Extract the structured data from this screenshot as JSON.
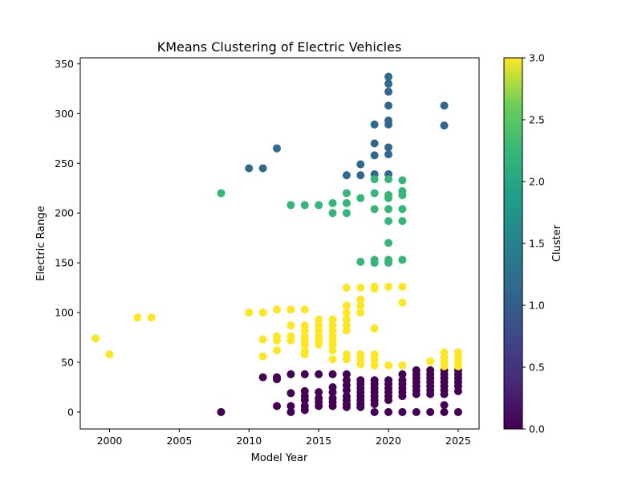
{
  "chart_data": {
    "type": "scatter",
    "title": "KMeans Clustering of Electric Vehicles",
    "xlabel": "Model Year",
    "ylabel": "Electric Range",
    "xlim": [
      1997.9,
      2026.5
    ],
    "ylim": [
      -17,
      356
    ],
    "x_ticks": [
      2000,
      2005,
      2010,
      2015,
      2020,
      2025
    ],
    "y_ticks": [
      0,
      50,
      100,
      150,
      200,
      250,
      300,
      350
    ],
    "grid": false,
    "colorbar": {
      "label": "Cluster",
      "range": [
        0,
        3
      ],
      "ticks": [
        0.0,
        0.5,
        1.0,
        1.5,
        2.0,
        2.5,
        3.0
      ],
      "tick_labels": [
        "0.0",
        "0.5",
        "1.0",
        "1.5",
        "2.0",
        "2.5",
        "3.0"
      ],
      "colormap": "viridis"
    },
    "clusters": [
      {
        "cluster": 0,
        "color": "#440154",
        "points": [
          [
            2008,
            0
          ],
          [
            2011,
            35
          ],
          [
            2012,
            35
          ],
          [
            2012,
            33
          ],
          [
            2012,
            6
          ],
          [
            2013,
            38
          ],
          [
            2013,
            19
          ],
          [
            2013,
            6
          ],
          [
            2013,
            0
          ],
          [
            2014,
            38
          ],
          [
            2014,
            21
          ],
          [
            2014,
            16
          ],
          [
            2014,
            12
          ],
          [
            2014,
            6
          ],
          [
            2014,
            2
          ],
          [
            2015,
            38
          ],
          [
            2015,
            20
          ],
          [
            2015,
            14
          ],
          [
            2015,
            10
          ],
          [
            2015,
            6
          ],
          [
            2016,
            38
          ],
          [
            2016,
            25
          ],
          [
            2016,
            20
          ],
          [
            2016,
            14
          ],
          [
            2016,
            10
          ],
          [
            2016,
            6
          ],
          [
            2017,
            38
          ],
          [
            2017,
            32
          ],
          [
            2017,
            27
          ],
          [
            2017,
            22
          ],
          [
            2017,
            16
          ],
          [
            2017,
            12
          ],
          [
            2017,
            8
          ],
          [
            2017,
            5
          ],
          [
            2018,
            32
          ],
          [
            2018,
            28
          ],
          [
            2018,
            24
          ],
          [
            2018,
            20
          ],
          [
            2018,
            16
          ],
          [
            2018,
            12
          ],
          [
            2018,
            8
          ],
          [
            2018,
            5
          ],
          [
            2019,
            32
          ],
          [
            2019,
            28
          ],
          [
            2019,
            24
          ],
          [
            2019,
            20
          ],
          [
            2019,
            16
          ],
          [
            2019,
            12
          ],
          [
            2019,
            8
          ],
          [
            2019,
            0
          ],
          [
            2020,
            32
          ],
          [
            2020,
            28
          ],
          [
            2020,
            24
          ],
          [
            2020,
            20
          ],
          [
            2020,
            16
          ],
          [
            2020,
            12
          ],
          [
            2020,
            0
          ],
          [
            2021,
            38
          ],
          [
            2021,
            32
          ],
          [
            2021,
            28
          ],
          [
            2021,
            24
          ],
          [
            2021,
            20
          ],
          [
            2021,
            16
          ],
          [
            2021,
            0
          ],
          [
            2022,
            42
          ],
          [
            2022,
            38
          ],
          [
            2022,
            34
          ],
          [
            2022,
            30
          ],
          [
            2022,
            26
          ],
          [
            2022,
            22
          ],
          [
            2022,
            18
          ],
          [
            2022,
            0
          ],
          [
            2023,
            42
          ],
          [
            2023,
            38
          ],
          [
            2023,
            34
          ],
          [
            2023,
            30
          ],
          [
            2023,
            26
          ],
          [
            2023,
            22
          ],
          [
            2023,
            18
          ],
          [
            2023,
            0
          ],
          [
            2024,
            42
          ],
          [
            2024,
            38
          ],
          [
            2024,
            34
          ],
          [
            2024,
            30
          ],
          [
            2024,
            26
          ],
          [
            2024,
            22
          ],
          [
            2024,
            18
          ],
          [
            2024,
            7
          ],
          [
            2024,
            0
          ],
          [
            2025,
            42
          ],
          [
            2025,
            38
          ],
          [
            2025,
            34
          ],
          [
            2025,
            30
          ],
          [
            2025,
            26
          ],
          [
            2025,
            21
          ],
          [
            2025,
            0
          ]
        ]
      },
      {
        "cluster": 1,
        "color": "#31688e",
        "points": [
          [
            2010,
            245
          ],
          [
            2011,
            245
          ],
          [
            2012,
            265
          ],
          [
            2017,
            238
          ],
          [
            2018,
            249
          ],
          [
            2018,
            238
          ],
          [
            2019,
            289
          ],
          [
            2019,
            270
          ],
          [
            2019,
            258
          ],
          [
            2019,
            239
          ],
          [
            2020,
            337
          ],
          [
            2020,
            330
          ],
          [
            2020,
            322
          ],
          [
            2020,
            308
          ],
          [
            2020,
            293
          ],
          [
            2020,
            289
          ],
          [
            2020,
            266
          ],
          [
            2020,
            259
          ],
          [
            2020,
            239
          ],
          [
            2024,
            308
          ],
          [
            2024,
            288
          ]
        ]
      },
      {
        "cluster": 2,
        "color": "#35b779",
        "points": [
          [
            2008,
            220
          ],
          [
            2013,
            208
          ],
          [
            2014,
            208
          ],
          [
            2015,
            208
          ],
          [
            2016,
            210
          ],
          [
            2016,
            200
          ],
          [
            2017,
            220
          ],
          [
            2017,
            210
          ],
          [
            2017,
            200
          ],
          [
            2018,
            215
          ],
          [
            2018,
            151
          ],
          [
            2019,
            234
          ],
          [
            2019,
            220
          ],
          [
            2019,
            204
          ],
          [
            2019,
            153
          ],
          [
            2019,
            150
          ],
          [
            2020,
            234
          ],
          [
            2020,
            218
          ],
          [
            2020,
            215
          ],
          [
            2020,
            204
          ],
          [
            2020,
            192
          ],
          [
            2020,
            170
          ],
          [
            2020,
            153
          ],
          [
            2020,
            150
          ],
          [
            2021,
            233
          ],
          [
            2021,
            222
          ],
          [
            2021,
            218
          ],
          [
            2021,
            204
          ],
          [
            2021,
            192
          ],
          [
            2021,
            153
          ]
        ]
      },
      {
        "cluster": 3,
        "color": "#fde725",
        "points": [
          [
            1999,
            74
          ],
          [
            2000,
            58
          ],
          [
            2002,
            95
          ],
          [
            2003,
            95
          ],
          [
            2010,
            100
          ],
          [
            2011,
            100
          ],
          [
            2011,
            73
          ],
          [
            2011,
            56
          ],
          [
            2012,
            103
          ],
          [
            2012,
            76
          ],
          [
            2012,
            72
          ],
          [
            2012,
            62
          ],
          [
            2013,
            103
          ],
          [
            2013,
            87
          ],
          [
            2013,
            76
          ],
          [
            2013,
            72
          ],
          [
            2014,
            103
          ],
          [
            2014,
            87
          ],
          [
            2014,
            82
          ],
          [
            2014,
            76
          ],
          [
            2014,
            72
          ],
          [
            2014,
            68
          ],
          [
            2014,
            62
          ],
          [
            2014,
            58
          ],
          [
            2015,
            93
          ],
          [
            2015,
            87
          ],
          [
            2015,
            82
          ],
          [
            2015,
            76
          ],
          [
            2015,
            72
          ],
          [
            2015,
            68
          ],
          [
            2016,
            93
          ],
          [
            2016,
            87
          ],
          [
            2016,
            82
          ],
          [
            2016,
            76
          ],
          [
            2016,
            72
          ],
          [
            2016,
            68
          ],
          [
            2016,
            62
          ],
          [
            2016,
            53
          ],
          [
            2017,
            125
          ],
          [
            2017,
            107
          ],
          [
            2017,
            100
          ],
          [
            2017,
            93
          ],
          [
            2017,
            87
          ],
          [
            2017,
            82
          ],
          [
            2017,
            58
          ],
          [
            2017,
            53
          ],
          [
            2018,
            125
          ],
          [
            2018,
            113
          ],
          [
            2018,
            107
          ],
          [
            2018,
            100
          ],
          [
            2018,
            58
          ],
          [
            2018,
            53
          ],
          [
            2018,
            48
          ],
          [
            2019,
            126
          ],
          [
            2019,
            124
          ],
          [
            2019,
            84
          ],
          [
            2019,
            58
          ],
          [
            2019,
            53
          ],
          [
            2019,
            47
          ],
          [
            2020,
            126
          ],
          [
            2020,
            47
          ],
          [
            2021,
            126
          ],
          [
            2021,
            110
          ],
          [
            2021,
            47
          ],
          [
            2023,
            51
          ],
          [
            2024,
            60
          ],
          [
            2024,
            55
          ],
          [
            2024,
            50
          ],
          [
            2024,
            46
          ],
          [
            2025,
            60
          ],
          [
            2025,
            56
          ],
          [
            2025,
            51
          ],
          [
            2025,
            46
          ]
        ]
      }
    ]
  }
}
